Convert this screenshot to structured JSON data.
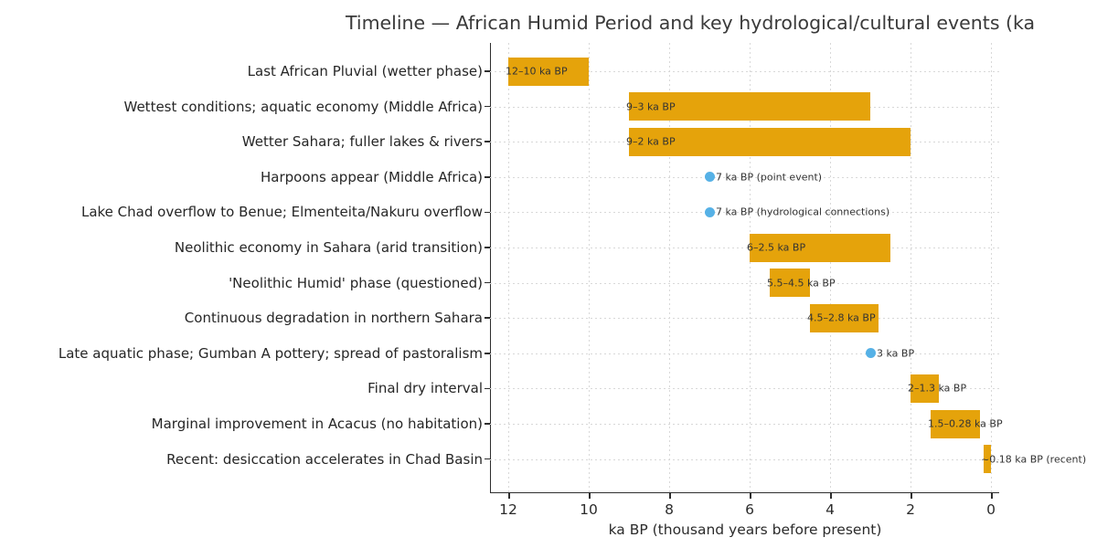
{
  "title": "Timeline — African Humid Period and key hydrological/cultural events (ka",
  "chart_data": {
    "type": "bar",
    "subtype": "horizontal-timeline",
    "xlabel": "ka BP (thousand years before present)",
    "x_ticks": [
      12,
      10,
      8,
      6,
      4,
      2,
      0
    ],
    "x_axis_reversed": true,
    "xlim": [
      12.45,
      -0.2
    ],
    "grid": "dashed-light-gray",
    "bar_color": "#e5a30b",
    "point_color": "#56b1e6",
    "rows": [
      {
        "label": "Last African Pluvial (wetter phase)",
        "kind": "span",
        "start": 12,
        "end": 10,
        "annotation": "12–10 ka BP"
      },
      {
        "label": "Wettest conditions; aquatic economy (Middle Africa)",
        "kind": "span",
        "start": 9,
        "end": 3,
        "annotation": "9–3 ka BP"
      },
      {
        "label": "Wetter Sahara; fuller lakes & rivers",
        "kind": "span",
        "start": 9,
        "end": 2,
        "annotation": "9–2 ka BP"
      },
      {
        "label": "Harpoons appear (Middle Africa)",
        "kind": "point",
        "value": 7,
        "annotation": "7 ka BP (point event)"
      },
      {
        "label": "Lake Chad overflow to Benue; Elmenteita/Nakuru overflow",
        "kind": "point",
        "value": 7,
        "annotation": "7 ka BP (hydrological connections)"
      },
      {
        "label": "Neolithic economy in Sahara (arid transition)",
        "kind": "span",
        "start": 6,
        "end": 2.5,
        "annotation": "6–2.5 ka BP"
      },
      {
        "label": "'Neolithic Humid' phase (questioned)",
        "kind": "span",
        "start": 5.5,
        "end": 4.5,
        "annotation": "5.5–4.5 ka BP"
      },
      {
        "label": "Continuous degradation in northern Sahara",
        "kind": "span",
        "start": 4.5,
        "end": 2.8,
        "annotation": "4.5–2.8 ka BP"
      },
      {
        "label": "Late aquatic phase; Gumban A pottery; spread of pastoralism",
        "kind": "point",
        "value": 3,
        "annotation": "3 ka BP"
      },
      {
        "label": "Final dry interval",
        "kind": "span",
        "start": 2,
        "end": 1.3,
        "annotation": "2–1.3 ka BP"
      },
      {
        "label": "Marginal improvement in Acacus (no habitation)",
        "kind": "span",
        "start": 1.5,
        "end": 0.28,
        "annotation": "1.5–0.28 ka BP"
      },
      {
        "label": "Recent: desiccation accelerates in Chad Basin",
        "kind": "span",
        "start": 0.18,
        "end": 0,
        "annotation": "~0.18 ka BP (recent)"
      }
    ]
  }
}
